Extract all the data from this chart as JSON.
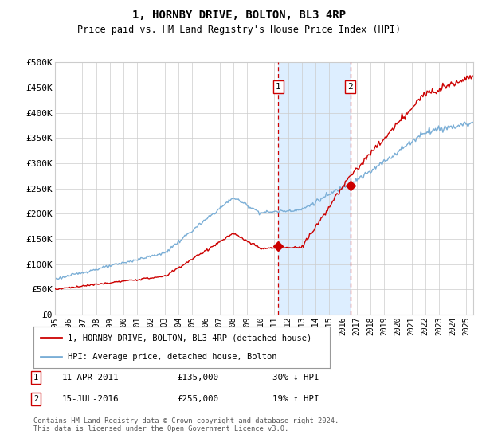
{
  "title": "1, HORNBY DRIVE, BOLTON, BL3 4RP",
  "subtitle": "Price paid vs. HM Land Registry's House Price Index (HPI)",
  "ylabel_ticks": [
    "£0",
    "£50K",
    "£100K",
    "£150K",
    "£200K",
    "£250K",
    "£300K",
    "£350K",
    "£400K",
    "£450K",
    "£500K"
  ],
  "ytick_values": [
    0,
    50000,
    100000,
    150000,
    200000,
    250000,
    300000,
    350000,
    400000,
    450000,
    500000
  ],
  "ylim": [
    0,
    500000
  ],
  "xlim_start": 1995.0,
  "xlim_end": 2025.5,
  "marker1_x": 2011.27,
  "marker1_y": 135000,
  "marker2_x": 2016.54,
  "marker2_y": 255000,
  "marker1_label": "11-APR-2011",
  "marker1_price": "£135,000",
  "marker1_hpi": "30% ↓ HPI",
  "marker2_label": "15-JUL-2016",
  "marker2_price": "£255,000",
  "marker2_hpi": "19% ↑ HPI",
  "red_color": "#cc0000",
  "blue_color": "#7aaed6",
  "shade_color": "#ddeeff",
  "vline_color": "#cc0000",
  "background_color": "#ffffff",
  "grid_color": "#cccccc",
  "legend_line1": "1, HORNBY DRIVE, BOLTON, BL3 4RP (detached house)",
  "legend_line2": "HPI: Average price, detached house, Bolton",
  "footnote": "Contains HM Land Registry data © Crown copyright and database right 2024.\nThis data is licensed under the Open Government Licence v3.0."
}
